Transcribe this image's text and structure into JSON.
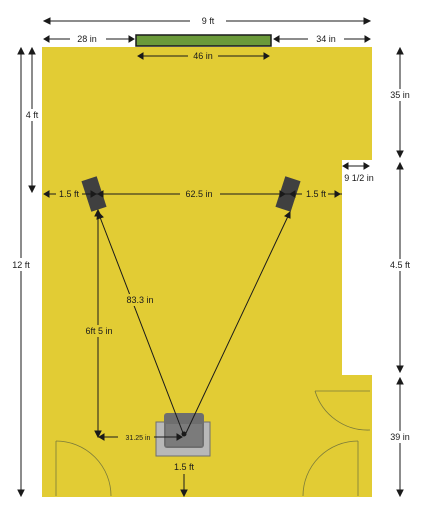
{
  "colors": {
    "floor": "#e2cc34",
    "wall_gap": "#ffffff",
    "dimension_line": "#1a1a1a",
    "speaker": "#404040",
    "feature_green": "#6b9a3a",
    "chair_light": "#b8b8b8",
    "chair_dark": "#6e6e6e"
  },
  "dimensions": {
    "room_width": "9 ft",
    "left_offset": "28 in",
    "right_offset": "34 in",
    "feature_width": "46 in",
    "right_wall_top": "35 in",
    "recess_depth": "9 1/2 in",
    "right_wall_mid": "4.5 ft",
    "right_wall_bottom": "39 in",
    "room_length": "12 ft",
    "speaker_from_front": "4 ft",
    "left_speaker_side": "1.5 ft",
    "speaker_spacing": "62.5 in",
    "right_speaker_side": "1.5 ft",
    "speaker_to_listener": "83.3 in",
    "speaker_to_listener_depth": "6ft 5 in",
    "listener_side": "31.25 in",
    "listener_from_back": "1.5 ft"
  },
  "elements": {
    "left_speaker": "speaker",
    "right_speaker": "speaker",
    "listening_chair": "armchair",
    "front_wall_feature": "window",
    "doors": [
      "door-swing-lower-left",
      "door-swing-lower-right-1",
      "door-swing-lower-right-2"
    ]
  }
}
